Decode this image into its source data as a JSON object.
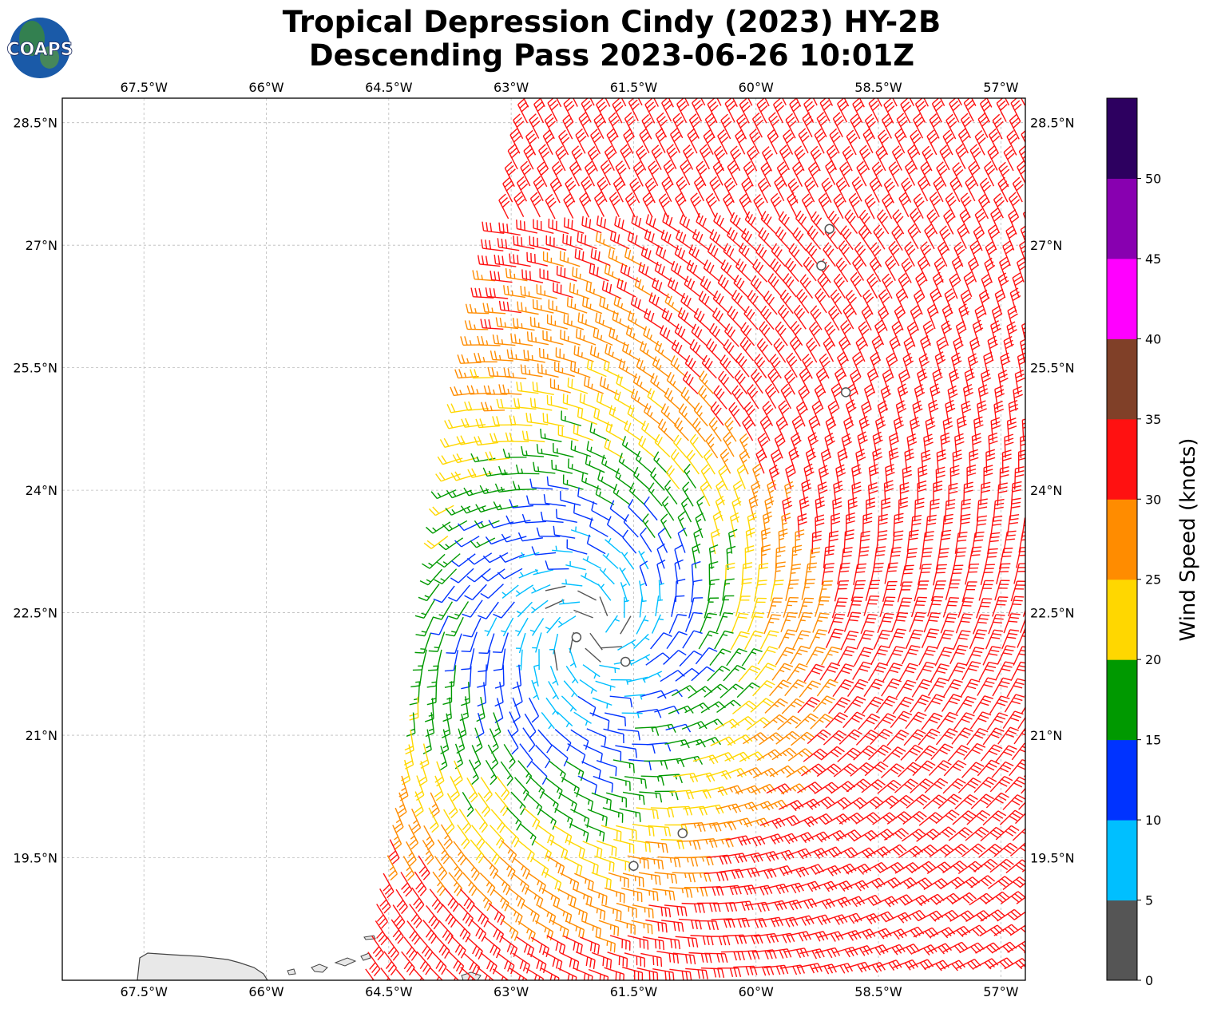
{
  "title": {
    "line1": "Tropical Depression Cindy (2023) HY-2B",
    "line2": "Descending Pass 2023-06-26 10:01Z"
  },
  "logo": {
    "text": "COAPS"
  },
  "map": {
    "lon_range": [
      -68.5,
      -56.7
    ],
    "lat_range": [
      18,
      28.8
    ],
    "lon_ticks": [
      {
        "value": -67.5,
        "label": "67.5°W"
      },
      {
        "value": -66,
        "label": "66°W"
      },
      {
        "value": -64.5,
        "label": "64.5°W"
      },
      {
        "value": -63,
        "label": "63°W"
      },
      {
        "value": -61.5,
        "label": "61.5°W"
      },
      {
        "value": -60,
        "label": "60°W"
      },
      {
        "value": -58.5,
        "label": "58.5°W"
      },
      {
        "value": -57,
        "label": "57°W"
      }
    ],
    "lat_ticks": [
      {
        "value": 28.5,
        "label": "28.5°N"
      },
      {
        "value": 27,
        "label": "27°N"
      },
      {
        "value": 25.5,
        "label": "25.5°N"
      },
      {
        "value": 24,
        "label": "24°N"
      },
      {
        "value": 22.5,
        "label": "22.5°N"
      },
      {
        "value": 21,
        "label": "21°N"
      },
      {
        "value": 19.5,
        "label": "19.5°N"
      }
    ],
    "gridlines": true,
    "calm_circles": [
      {
        "lon": -59.1,
        "lat": 27.2
      },
      {
        "lon": -59.2,
        "lat": 26.75
      },
      {
        "lon": -58.9,
        "lat": 25.2
      },
      {
        "lon": -62.2,
        "lat": 22.2
      },
      {
        "lon": -61.6,
        "lat": 21.9
      },
      {
        "lon": -60.9,
        "lat": 19.8
      },
      {
        "lon": -61.5,
        "lat": 19.4
      }
    ]
  },
  "colorbar": {
    "label": "Wind Speed (knots)",
    "range": [
      0,
      55
    ],
    "tick_values": [
      0,
      5,
      10,
      15,
      20,
      25,
      30,
      35,
      40,
      45,
      50
    ],
    "tick_labels": [
      "0",
      "5",
      "10",
      "15",
      "20",
      "25",
      "30",
      "35",
      "40",
      "45",
      "50"
    ],
    "colors": [
      "#555555",
      "#00bfff",
      "#0033ff",
      "#009900",
      "#ffd700",
      "#ff8c00",
      "#ff1111",
      "#804028",
      "#ff00ff",
      "#8800b0",
      "#2d0060"
    ]
  }
}
